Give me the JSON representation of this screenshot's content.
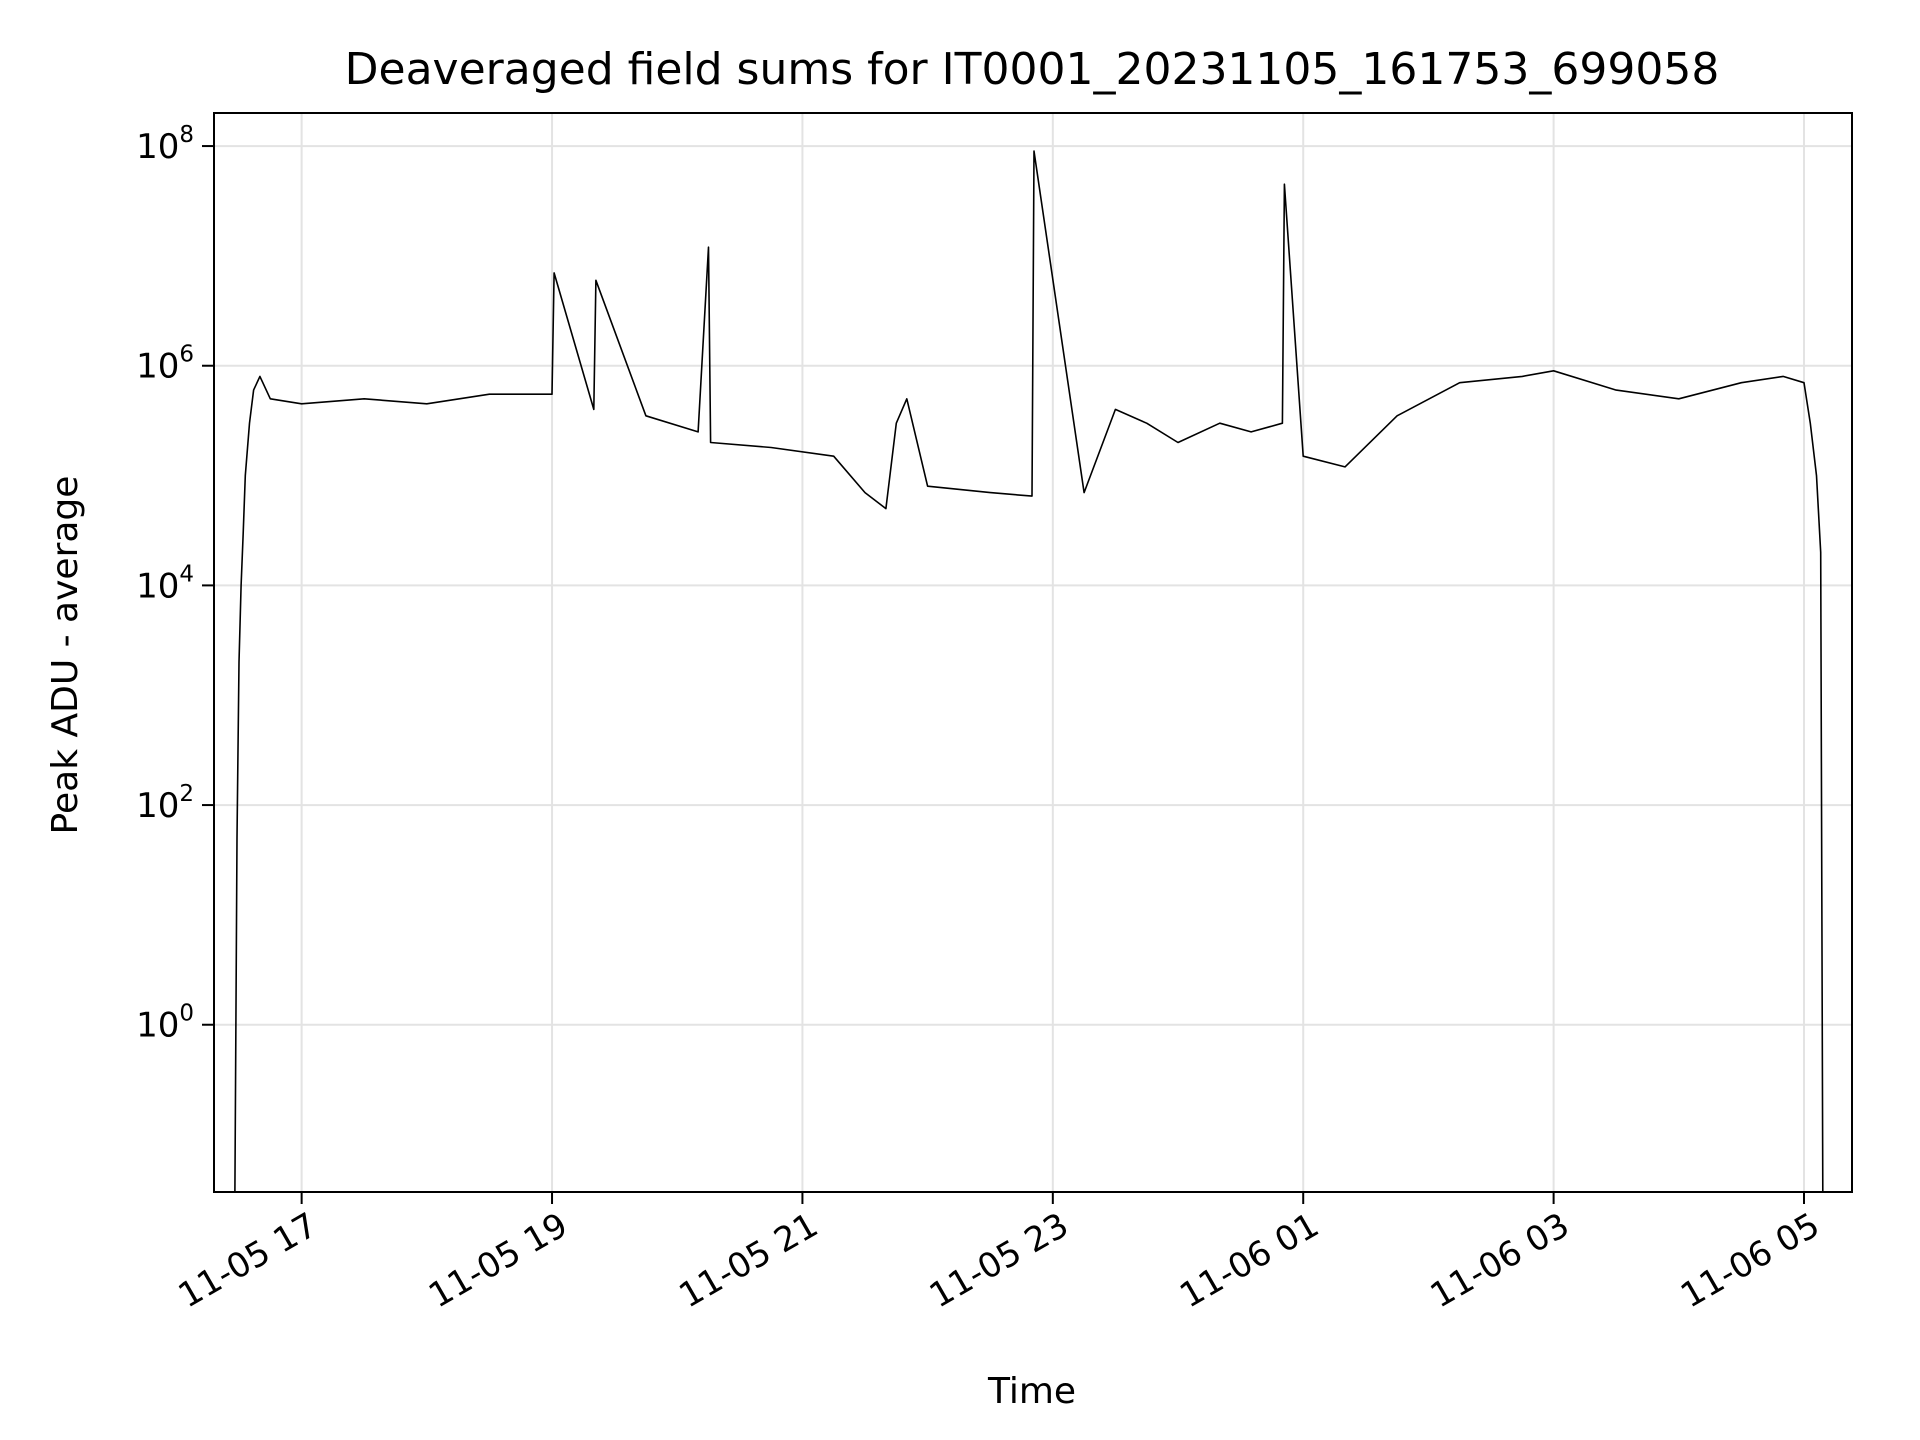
{
  "chart_data": {
    "type": "line",
    "title": "Deaveraged field sums for IT0001_20231105_161753_699058",
    "xlabel": "Time",
    "ylabel": "Peak ADU - average",
    "yscale": "log",
    "ylim": [
      0.03,
      200000000
    ],
    "xlim": [
      "2023-11-05 16:18",
      "2023-11-06 05:23"
    ],
    "grid": true,
    "line_color": "#000000",
    "xticks": [
      {
        "value": "2023-11-05 17:00",
        "label": "11-05 17"
      },
      {
        "value": "2023-11-05 19:00",
        "label": "11-05 19"
      },
      {
        "value": "2023-11-05 21:00",
        "label": "11-05 21"
      },
      {
        "value": "2023-11-05 23:00",
        "label": "11-05 23"
      },
      {
        "value": "2023-11-06 01:00",
        "label": "11-06 01"
      },
      {
        "value": "2023-11-06 03:00",
        "label": "11-06 03"
      },
      {
        "value": "2023-11-06 05:00",
        "label": "11-06 05"
      }
    ],
    "yticks": [
      {
        "value": 1,
        "base": "10",
        "exp": "0"
      },
      {
        "value": 100,
        "base": "10",
        "exp": "2"
      },
      {
        "value": 10000,
        "base": "10",
        "exp": "4"
      },
      {
        "value": 1000000,
        "base": "10",
        "exp": "6"
      },
      {
        "value": 100000000,
        "base": "10",
        "exp": "8"
      }
    ],
    "series": [
      {
        "x": [
          "2023-11-05 16:28",
          "2023-11-05 16:29",
          "2023-11-05 16:30",
          "2023-11-05 16:31",
          "2023-11-05 16:32",
          "2023-11-05 16:33",
          "2023-11-05 16:35",
          "2023-11-05 16:37",
          "2023-11-05 16:40",
          "2023-11-05 16:45",
          "2023-11-05 17:00",
          "2023-11-05 17:30",
          "2023-11-05 18:00",
          "2023-11-05 18:30",
          "2023-11-05 19:00",
          "2023-11-05 19:01",
          "2023-11-05 19:20",
          "2023-11-05 19:21",
          "2023-11-05 19:45",
          "2023-11-05 20:10",
          "2023-11-05 20:15",
          "2023-11-05 20:16",
          "2023-11-05 20:45",
          "2023-11-05 21:15",
          "2023-11-05 21:30",
          "2023-11-05 21:40",
          "2023-11-05 21:45",
          "2023-11-05 21:50",
          "2023-11-05 22:00",
          "2023-11-05 22:30",
          "2023-11-05 22:50",
          "2023-11-05 22:51",
          "2023-11-05 23:15",
          "2023-11-05 23:30",
          "2023-11-05 23:45",
          "2023-11-06 00:00",
          "2023-11-06 00:20",
          "2023-11-06 00:35",
          "2023-11-06 00:50",
          "2023-11-06 00:51",
          "2023-11-06 01:00",
          "2023-11-06 01:20",
          "2023-11-06 01:45",
          "2023-11-06 02:15",
          "2023-11-06 02:45",
          "2023-11-06 03:00",
          "2023-11-06 03:30",
          "2023-11-06 04:00",
          "2023-11-06 04:30",
          "2023-11-06 04:50",
          "2023-11-06 05:00",
          "2023-11-06 05:03",
          "2023-11-06 05:06",
          "2023-11-06 05:08",
          "2023-11-06 05:09"
        ],
        "y": [
          0.03,
          50,
          2000,
          10000,
          30000,
          100000,
          300000,
          600000,
          800000,
          500000,
          450000,
          500000,
          450000,
          550000,
          550000,
          7000000,
          400000,
          6000000,
          350000,
          250000,
          12000000,
          200000,
          180000,
          150000,
          70000,
          50000,
          300000,
          500000,
          80000,
          70000,
          65000,
          90000000,
          70000,
          400000,
          300000,
          200000,
          300000,
          250000,
          300000,
          45000000,
          150000,
          120000,
          350000,
          700000,
          800000,
          900000,
          600000,
          500000,
          700000,
          800000,
          700000,
          300000,
          100000,
          20000,
          0.03
        ]
      }
    ]
  }
}
